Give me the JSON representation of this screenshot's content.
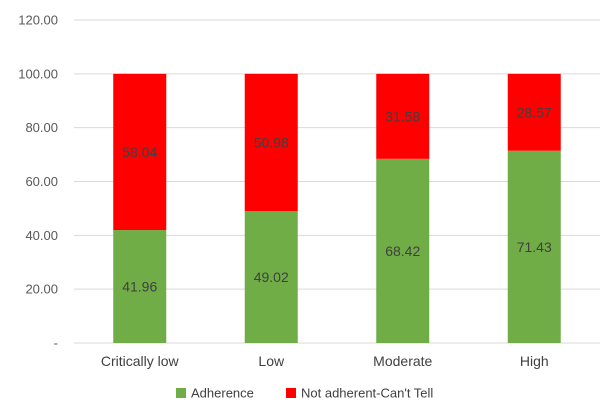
{
  "chart_data": {
    "type": "bar",
    "stacked": true,
    "categories": [
      "Critically low",
      "Low",
      "Moderate",
      "High"
    ],
    "series": [
      {
        "name": "Adherence",
        "color": "#70ad47",
        "values": [
          41.96,
          49.02,
          68.42,
          71.43
        ]
      },
      {
        "name": "Not adherent-Can't Tell",
        "color": "#ff0000",
        "values": [
          58.04,
          50.98,
          31.58,
          28.57
        ]
      }
    ],
    "data_labels": [
      [
        "41.96",
        "49.02",
        "68.42",
        "71.43"
      ],
      [
        "58.04",
        "50.98",
        "31.58",
        "28.57"
      ]
    ],
    "y_ticks": [
      0,
      20,
      40,
      60,
      80,
      100,
      120
    ],
    "y_tick_labels": [
      "-",
      "20.00",
      "40.00",
      "60.00",
      "80.00",
      "100.00",
      "120.00"
    ],
    "ylim": [
      0,
      120
    ],
    "grid": true,
    "legend_position": "bottom",
    "title": "",
    "xlabel": "",
    "ylabel": ""
  }
}
